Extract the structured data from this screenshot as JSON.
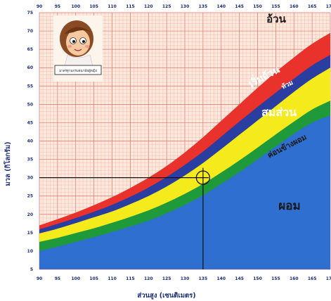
{
  "chart_data": {
    "type": "area",
    "title": "",
    "xlabel": "ส่วนสูง (เซนติเมตร)",
    "ylabel": "มวล (กิโลกรัม)",
    "xlim": [
      90,
      170
    ],
    "ylim": [
      5,
      75
    ],
    "x_ticks": [
      "90",
      "95",
      "100",
      "105",
      "110",
      "115",
      "120",
      "125",
      "130",
      "135",
      "140",
      "145",
      "150",
      "155",
      "160",
      "165",
      "170"
    ],
    "y_ticks": [
      "5",
      "10",
      "15",
      "20",
      "25",
      "30",
      "35",
      "40",
      "45",
      "50",
      "55",
      "60",
      "65",
      "70",
      "75"
    ],
    "grid": true,
    "x": [
      90,
      95,
      100,
      105,
      110,
      115,
      120,
      125,
      130,
      135,
      140,
      145,
      150,
      155,
      160,
      165,
      170
    ],
    "series": [
      {
        "name": "ผอม",
        "color": "#2f6fcf",
        "values": [
          10,
          11.2,
          12.5,
          13.8,
          15.2,
          16.7,
          18.3,
          20.3,
          22.6,
          25.2,
          28.3,
          31.5,
          35,
          38.5,
          42,
          45,
          47
        ]
      },
      {
        "name": "ค่อนข้างผอม",
        "color": "#1f9a3a",
        "values": [
          12.5,
          13.6,
          14.9,
          16.2,
          17.7,
          19.3,
          21.1,
          23.2,
          25.6,
          28.3,
          31.4,
          34.7,
          38.2,
          41.8,
          45.3,
          48.6,
          51
        ]
      },
      {
        "name": "สมส่วน",
        "color": "#f5ea1c",
        "values": [
          14.8,
          16.1,
          17.6,
          19.2,
          20.8,
          22.8,
          25,
          27.6,
          30.6,
          34,
          37.8,
          41.7,
          45.6,
          49.5,
          53.4,
          57,
          60
        ]
      },
      {
        "name": "ท้วม",
        "color": "#2a3da0",
        "values": [
          15.9,
          17.4,
          19,
          20.7,
          22.6,
          24.8,
          27.3,
          30.2,
          33.5,
          37.1,
          41.2,
          45.3,
          49.3,
          53.2,
          57,
          60.6,
          63.5
        ]
      },
      {
        "name": "เริ่มอ้วน",
        "color": "#e8322b",
        "values": [
          17,
          18.7,
          20.5,
          22.5,
          24.7,
          27.2,
          30,
          33.2,
          36.9,
          41,
          45.5,
          50,
          54.5,
          58.8,
          62.8,
          66.5,
          69.5
        ]
      },
      {
        "name": "อ้วน",
        "color": "#fde9dc",
        "values": [
          null,
          null,
          null,
          null,
          null,
          null,
          null,
          null,
          null,
          null,
          null,
          null,
          null,
          null,
          null,
          null,
          null
        ]
      }
    ],
    "annotation": {
      "x": 135,
      "y": 30
    },
    "zone_labels": {
      "obese": "อ้วน",
      "overweight": "เริ่มอ้วน",
      "chubby": "ท้วม",
      "normal": "สมส่วน",
      "slightly_thin": "ค่อนข้างผอม",
      "thin": "ผอม"
    },
    "colors": {
      "grid_minor": "#f2a7a0",
      "grid_major": "#e07068",
      "background": "#fde9dc",
      "ticks": "#1a2a7a"
    }
  },
  "logo_box": {
    "caption": "มาตรฐานกรมอนามัยผู้หญิง"
  }
}
